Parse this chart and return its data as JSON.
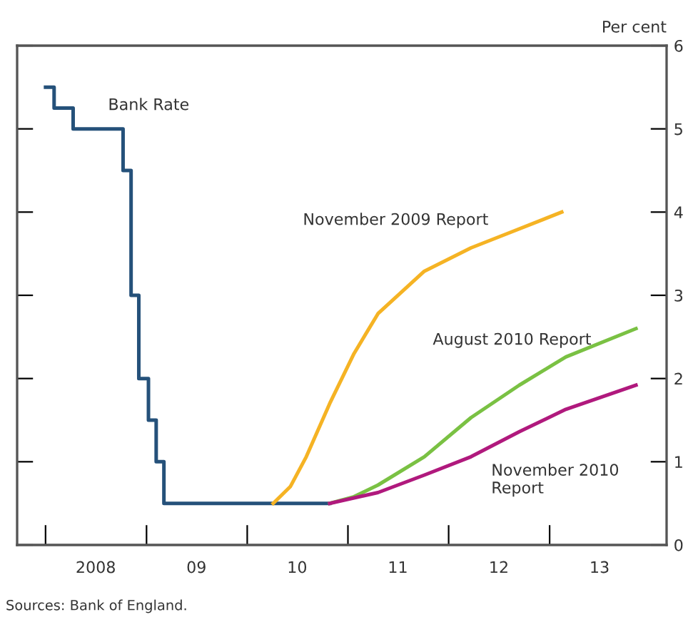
{
  "chart_data": {
    "type": "line",
    "ylabel": "Per cent",
    "xlim": [
      "2007-09-20",
      "2014-03-01"
    ],
    "ylim": [
      0,
      6
    ],
    "yticks": [
      0,
      1,
      2,
      3,
      4,
      5,
      6
    ],
    "xticks": [
      {
        "value": "2008-01-01",
        "label": null
      },
      {
        "value": "2009-01-01",
        "label": null
      },
      {
        "value": "2010-01-01",
        "label": null
      },
      {
        "value": "2011-01-01",
        "label": null
      },
      {
        "value": "2012-01-01",
        "label": null
      },
      {
        "value": "2013-01-01",
        "label": null
      },
      {
        "value": "2008-07-01",
        "label": "2008"
      },
      {
        "value": "2009-07-01",
        "label": "09"
      },
      {
        "value": "2010-07-01",
        "label": "10"
      },
      {
        "value": "2011-07-01",
        "label": "11"
      },
      {
        "value": "2012-07-01",
        "label": "12"
      },
      {
        "value": "2013-07-01",
        "label": "13"
      }
    ],
    "grid": false,
    "series": [
      {
        "name": "Bank Rate",
        "type": "step",
        "color": "#25517a",
        "x": [
          "2008-01-01",
          "2008-02-01",
          "2008-04-10",
          "2008-10-08",
          "2008-11-06",
          "2008-12-04",
          "2009-01-08",
          "2009-02-05",
          "2009-03-05",
          "2010-10-27"
        ],
        "values": [
          5.5,
          5.25,
          5.0,
          4.5,
          3.0,
          2.0,
          1.5,
          1.0,
          0.5,
          0.5
        ]
      },
      {
        "name": "November 2009 Report",
        "color": "#f5b324",
        "x": [
          "2010-04-05",
          "2010-06-06",
          "2010-08-03",
          "2010-10-27",
          "2011-01-23",
          "2011-04-20",
          "2011-10-05",
          "2012-03-22",
          "2012-08-07",
          "2013-02-14"
        ],
        "values": [
          0.5,
          0.7,
          1.06,
          1.7,
          2.3,
          2.78,
          3.29,
          3.57,
          3.75,
          4.0
        ]
      },
      {
        "name": "August 2010 Report",
        "color": "#7ac143",
        "x": [
          "2010-10-27",
          "2011-01-23",
          "2011-04-20",
          "2011-10-05",
          "2012-03-22",
          "2012-09-13",
          "2013-03-01",
          "2013-11-10"
        ],
        "values": [
          0.5,
          0.58,
          0.72,
          1.06,
          1.53,
          1.92,
          2.26,
          2.6
        ]
      },
      {
        "name": "November 2010\nReport",
        "color": "#b0197d",
        "x": [
          "2010-10-27",
          "2011-04-20",
          "2011-10-05",
          "2012-03-22",
          "2012-09-13",
          "2013-03-01",
          "2013-11-10"
        ],
        "values": [
          0.5,
          0.63,
          0.84,
          1.06,
          1.36,
          1.63,
          1.92
        ]
      }
    ],
    "annotations": [
      "Sources: Bank of England."
    ]
  }
}
